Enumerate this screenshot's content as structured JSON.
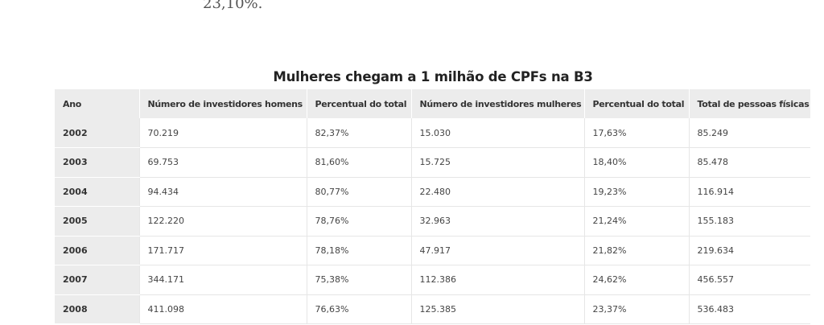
{
  "prev_paragraph_tail": "23,10%.",
  "table": {
    "title": "Mulheres chegam a 1 milhão de CPFs na B3",
    "headers": [
      "Ano",
      "Número de investidores homens",
      "Percentual do total",
      "Número de investidores mulheres",
      "Percentual do total",
      "Total de pessoas físicas"
    ],
    "rows": [
      [
        "2002",
        "70.219",
        "82,37%",
        "15.030",
        "17,63%",
        "85.249"
      ],
      [
        "2003",
        "69.753",
        "81,60%",
        "15.725",
        "18,40%",
        "85.478"
      ],
      [
        "2004",
        "94.434",
        "80,77%",
        "22.480",
        "19,23%",
        "116.914"
      ],
      [
        "2005",
        "122.220",
        "78,76%",
        "32.963",
        "21,24%",
        "155.183"
      ],
      [
        "2006",
        "171.717",
        "78,18%",
        "47.917",
        "21,82%",
        "219.634"
      ],
      [
        "2007",
        "344.171",
        "75,38%",
        "112.386",
        "24,62%",
        "456.557"
      ],
      [
        "2008",
        "411.098",
        "76,63%",
        "125.385",
        "23,37%",
        "536.483"
      ]
    ]
  }
}
